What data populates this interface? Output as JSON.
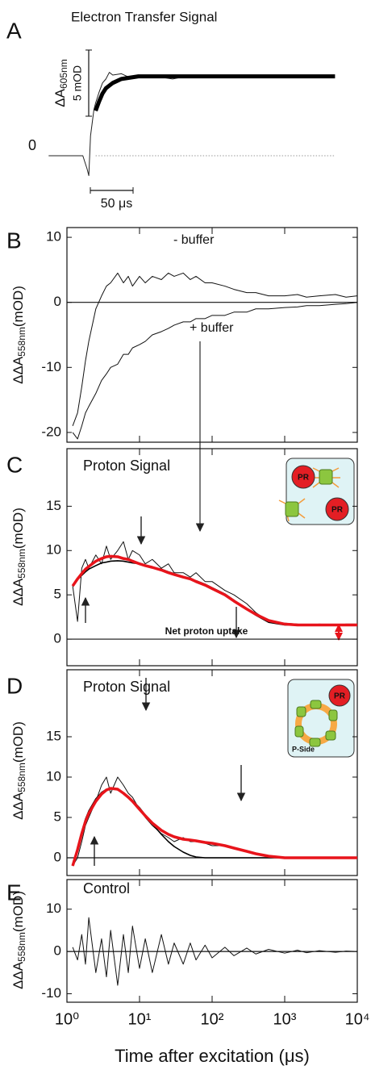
{
  "chart_data": [
    {
      "type": "line",
      "label": "A",
      "title": "Electron Transfer Signal",
      "x": [
        -45,
        -5,
        0,
        2,
        4,
        6,
        8,
        10,
        14,
        18,
        22,
        26,
        30,
        40,
        50,
        60,
        80,
        100,
        120,
        140,
        160,
        180,
        200,
        220,
        240,
        260,
        280,
        290
      ],
      "xlim": [
        -45,
        290
      ],
      "ylim": [
        -2,
        8.5
      ],
      "yticks": [
        0
      ],
      "hline": 0,
      "scale_y": {
        "label": [
          "ΔA",
          "605nm"
        ],
        "value": 5,
        "value_label": "5 mOD"
      },
      "scale_x": {
        "value": 50,
        "value_label": "50 μs"
      },
      "series": [
        {
          "color": "#222222",
          "line_width": 1,
          "values": [
            0,
            0,
            -1,
            -1.5,
            1.5,
            2.5,
            3.5,
            4,
            4.8,
            5.5,
            5.8,
            6.3,
            6.1,
            6.2,
            5.9,
            6.1,
            6,
            5.8,
            6.05,
            6,
            6,
            6,
            6,
            5.9,
            6,
            null,
            null,
            null
          ]
        },
        {
          "color": "#000000",
          "line_width": 5,
          "values": [
            null,
            null,
            null,
            null,
            null,
            null,
            null,
            3.4,
            4.1,
            4.7,
            5.1,
            5.3,
            5.5,
            5.8,
            5.9,
            6,
            6,
            6,
            6,
            6,
            6,
            6,
            6,
            6,
            6,
            6,
            6,
            6
          ]
        }
      ]
    },
    {
      "type": "line",
      "label": "B",
      "xscale": "log",
      "x": [
        1.2,
        1.4,
        1.6,
        1.8,
        2,
        2.5,
        3,
        3.5,
        4,
        5,
        6,
        7,
        8,
        10,
        12,
        15,
        20,
        25,
        30,
        40,
        50,
        60,
        80,
        100,
        150,
        200,
        300,
        400,
        600,
        1000,
        1500,
        2000,
        3000,
        5000,
        7000,
        10000
      ],
      "xlim": [
        1,
        10000
      ],
      "xticks": [
        1,
        10,
        100,
        1000,
        10000
      ],
      "ylim": [
        -21.5,
        11.5
      ],
      "yticks": [
        10,
        0,
        -10,
        -20
      ],
      "hline": 0,
      "ylabel": [
        "ΔΔA",
        "558nm",
        "(mOD)"
      ],
      "annotations": [
        "- buffer",
        "+ buffer"
      ],
      "series": [
        {
          "color": "#111111",
          "line_width": 1,
          "values": [
            -19,
            -17,
            -13,
            -9,
            -6,
            -1,
            1,
            2.5,
            3,
            4.5,
            3,
            4,
            2.5,
            4,
            3,
            4,
            3.5,
            4.5,
            4,
            4.5,
            3.5,
            4,
            3,
            3,
            2.5,
            2,
            1.5,
            1.5,
            1,
            1,
            1.2,
            0.8,
            1,
            1.2,
            0.8,
            1
          ]
        },
        {
          "color": "#111111",
          "line_width": 1,
          "values": [
            -20,
            -21,
            -19,
            -17,
            -16,
            -14,
            -12,
            -11,
            -10,
            -9.5,
            -8,
            -8,
            -7,
            -6.5,
            -6,
            -5,
            -4.5,
            -4,
            -3.5,
            -3,
            -3,
            -2.5,
            -2.5,
            -2,
            -2,
            -1.5,
            -1.5,
            -1,
            -1,
            -0.8,
            -0.7,
            -0.5,
            -0.5,
            -0.3,
            -0.2,
            0
          ]
        }
      ]
    },
    {
      "type": "line",
      "label": "C",
      "title": "Proton Signal",
      "xscale": "log",
      "x": [
        1.2,
        1.4,
        1.6,
        1.8,
        2,
        2.5,
        3,
        3.5,
        4,
        5,
        6,
        7,
        8,
        10,
        12,
        15,
        20,
        25,
        30,
        40,
        50,
        60,
        80,
        100,
        150,
        200,
        300,
        400,
        600,
        1000,
        1500,
        2000,
        3000,
        5000,
        7000,
        10000
      ],
      "xlim": [
        1,
        10000
      ],
      "xticks": [
        1,
        10,
        100,
        1000,
        10000
      ],
      "ylim": [
        -3,
        21.5
      ],
      "yticks": [
        0,
        5,
        10,
        15
      ],
      "hline": 0,
      "ylabel": [
        "ΔΔA",
        "558nm",
        "(mOD)"
      ],
      "annotations": [
        "Net proton uptake"
      ],
      "inset_labels": [
        "PR",
        "PR"
      ],
      "series": [
        {
          "color": "#111111",
          "line_width": 1,
          "values": [
            6,
            2,
            8,
            9,
            8,
            9.5,
            8.5,
            10.5,
            9,
            10,
            11,
            9,
            10,
            9.5,
            8.5,
            9,
            8,
            8.5,
            7.5,
            7.5,
            7,
            7.5,
            6.5,
            6.5,
            5.5,
            5,
            4,
            3,
            2,
            1.8,
            1.7,
            1.6,
            1.7,
            1.6,
            1.7,
            1.7
          ]
        },
        {
          "color": "#000000",
          "line_width": 1.6,
          "values": [
            6,
            6.7,
            7.2,
            7.6,
            7.9,
            8.3,
            8.6,
            8.7,
            8.8,
            8.85,
            8.8,
            8.7,
            8.6,
            8.5,
            8.3,
            8.1,
            7.9,
            7.6,
            7.4,
            7,
            6.8,
            6.6,
            6.2,
            5.8,
            5.1,
            4.4,
            3.4,
            2.7,
            1.9,
            1.6,
            1.6,
            1.6,
            1.6,
            1.6,
            1.6,
            1.6
          ]
        },
        {
          "color": "#e8141b",
          "line_width": 3.5,
          "values": [
            6,
            6.8,
            7.4,
            7.9,
            8.2,
            8.8,
            9.1,
            9.3,
            9.35,
            9.3,
            9.1,
            9,
            8.8,
            8.5,
            8.3,
            8.1,
            7.8,
            7.5,
            7.3,
            7,
            6.8,
            6.5,
            6.1,
            5.7,
            5,
            4.3,
            3.4,
            2.8,
            2.1,
            1.7,
            1.6,
            1.6,
            1.6,
            1.6,
            1.6,
            1.6
          ]
        }
      ]
    },
    {
      "type": "line",
      "label": "D",
      "title": "Proton Signal",
      "xscale": "log",
      "x": [
        1.2,
        1.4,
        1.6,
        1.8,
        2,
        2.5,
        3,
        3.5,
        4,
        5,
        6,
        7,
        8,
        10,
        12,
        15,
        20,
        25,
        30,
        40,
        50,
        60,
        80,
        100,
        150,
        200,
        300,
        400,
        600,
        1000,
        1500,
        2000,
        3000,
        5000,
        7000,
        10000
      ],
      "xlim": [
        1,
        10000
      ],
      "xticks": [
        1,
        10,
        100,
        1000,
        10000
      ],
      "ylim": [
        -2.2,
        23.3
      ],
      "yticks": [
        0,
        5,
        10,
        15
      ],
      "hline": 0,
      "ylabel": [
        "ΔΔA",
        "558nm",
        "(mOD)"
      ],
      "inset_labels": [
        "PR",
        "P-Side"
      ],
      "series": [
        {
          "color": "#111111",
          "line_width": 1,
          "values": [
            -1,
            0,
            2,
            4,
            5,
            7,
            9,
            10,
            8,
            10,
            9,
            8,
            7.5,
            6,
            5,
            4,
            3,
            2.5,
            2,
            2.5,
            2,
            2,
            1.8,
            1.5,
            1.5,
            1.2,
            0.8,
            0.5,
            0.2,
            0,
            0.1,
            0,
            0,
            0,
            0,
            0
          ]
        },
        {
          "color": "#000000",
          "line_width": 1.6,
          "values": [
            -1,
            1.2,
            3.2,
            4.8,
            5.8,
            7.3,
            8.1,
            8.5,
            8.6,
            8.4,
            8,
            7.6,
            7.1,
            6.2,
            5.3,
            4.2,
            2.9,
            2,
            1.4,
            0.7,
            0.3,
            0.1,
            0,
            0,
            0,
            0,
            0,
            0,
            0,
            0,
            0,
            0,
            0,
            0,
            0,
            0
          ]
        },
        {
          "color": "#e8141b",
          "line_width": 3.5,
          "values": [
            -1,
            1,
            3,
            4.5,
            5.5,
            7,
            7.9,
            8.4,
            8.6,
            8.5,
            8,
            7.5,
            7,
            6,
            5.2,
            4.3,
            3.4,
            2.9,
            2.6,
            2.3,
            2.2,
            2.1,
            1.9,
            1.8,
            1.5,
            1.2,
            0.8,
            0.5,
            0.2,
            0,
            0,
            0,
            0,
            0,
            0,
            0
          ]
        }
      ]
    },
    {
      "type": "line",
      "label": "E",
      "title": "Control",
      "xscale": "log",
      "x": [
        1.2,
        1.4,
        1.6,
        1.8,
        2,
        2.5,
        3,
        3.5,
        4,
        5,
        6,
        7,
        8,
        10,
        12,
        15,
        20,
        25,
        30,
        40,
        50,
        60,
        80,
        100,
        150,
        200,
        300,
        400,
        600,
        1000,
        1500,
        2000,
        3000,
        5000,
        7000,
        10000
      ],
      "xlim": [
        1,
        10000
      ],
      "xticks": [
        {
          "value": 1,
          "label": "10⁰"
        },
        {
          "value": 10,
          "label": "10¹"
        },
        {
          "value": 100,
          "label": "10²"
        },
        {
          "value": 1000,
          "label": "10³"
        },
        {
          "value": 10000,
          "label": "10⁴"
        }
      ],
      "xlabel": "Time after excitation (μs)",
      "ylim": [
        -12,
        17
      ],
      "yticks": [
        10,
        0,
        -10
      ],
      "hline": 0,
      "ylabel": [
        "ΔΔA",
        "558nm",
        "(mOD)"
      ],
      "series": [
        {
          "color": "#111111",
          "line_width": 1,
          "values": [
            1,
            -2,
            4,
            -3,
            8,
            -5,
            3,
            -6,
            5,
            -8,
            4,
            -5,
            6,
            -4,
            3,
            -5,
            4,
            -3,
            2,
            -3,
            2,
            -2,
            1.5,
            -1.5,
            1,
            -1,
            0.8,
            -0.6,
            0.5,
            -0.4,
            0.3,
            -0.3,
            0.2,
            -0.2,
            0.1,
            0
          ]
        }
      ]
    }
  ]
}
